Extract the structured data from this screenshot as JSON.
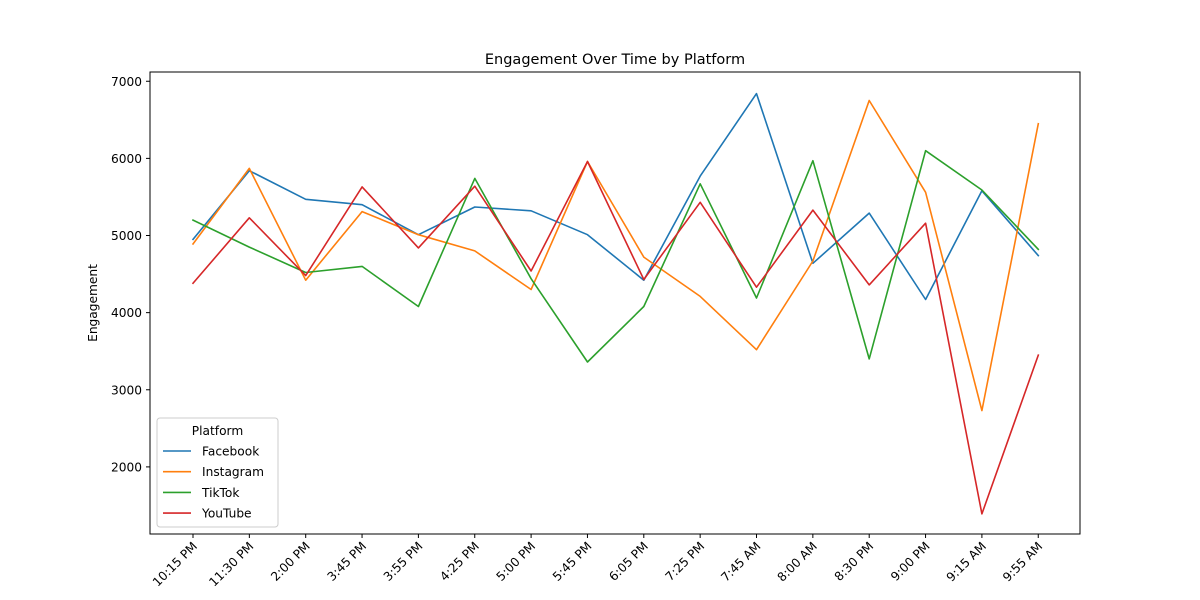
{
  "colors": {
    "Facebook": "#1f77b4",
    "Instagram": "#ff7f0e",
    "TikTok": "#2ca02c",
    "YouTube": "#d62728"
  },
  "chart_data": {
    "type": "line",
    "title": "Engagement Over Time by Platform",
    "xlabel": "",
    "ylabel": "Engagement",
    "categories": [
      "10:15 PM",
      "11:30 PM",
      "2:00 PM",
      "3:45 PM",
      "3:55 PM",
      "4:25 PM",
      "5:00 PM",
      "5:45 PM",
      "6:05 PM",
      "7:25 PM",
      "7:45 AM",
      "8:00 AM",
      "8:30 PM",
      "9:00 PM",
      "9:15 AM",
      "9:55 AM"
    ],
    "ylim": [
      1130,
      7120
    ],
    "yticks": [
      2000,
      3000,
      4000,
      5000,
      6000,
      7000
    ],
    "ytick_labels": [
      "2000",
      "3000",
      "4000",
      "5000",
      "6000",
      "7000"
    ],
    "grid": false,
    "legend_position": "lower-left",
    "legend_title": "Platform",
    "series": [
      {
        "name": "Facebook",
        "values": [
          4950,
          5840,
          5470,
          5400,
          5010,
          5370,
          5320,
          5010,
          4420,
          5770,
          6840,
          4640,
          5290,
          4170,
          5580,
          4740
        ]
      },
      {
        "name": "Instagram",
        "values": [
          4890,
          5870,
          4420,
          5310,
          5010,
          4800,
          4300,
          5960,
          4720,
          4210,
          3520,
          4670,
          6750,
          5560,
          2730,
          6450
        ]
      },
      {
        "name": "TikTok",
        "values": [
          5200,
          4850,
          4520,
          4600,
          4080,
          5740,
          4440,
          3360,
          4080,
          5670,
          4190,
          5970,
          3400,
          6100,
          5590,
          4820
        ]
      },
      {
        "name": "YouTube",
        "values": [
          4380,
          5230,
          4480,
          5630,
          4840,
          5640,
          4540,
          5960,
          4430,
          5430,
          4330,
          5330,
          4360,
          5160,
          1390,
          3450
        ]
      }
    ]
  }
}
